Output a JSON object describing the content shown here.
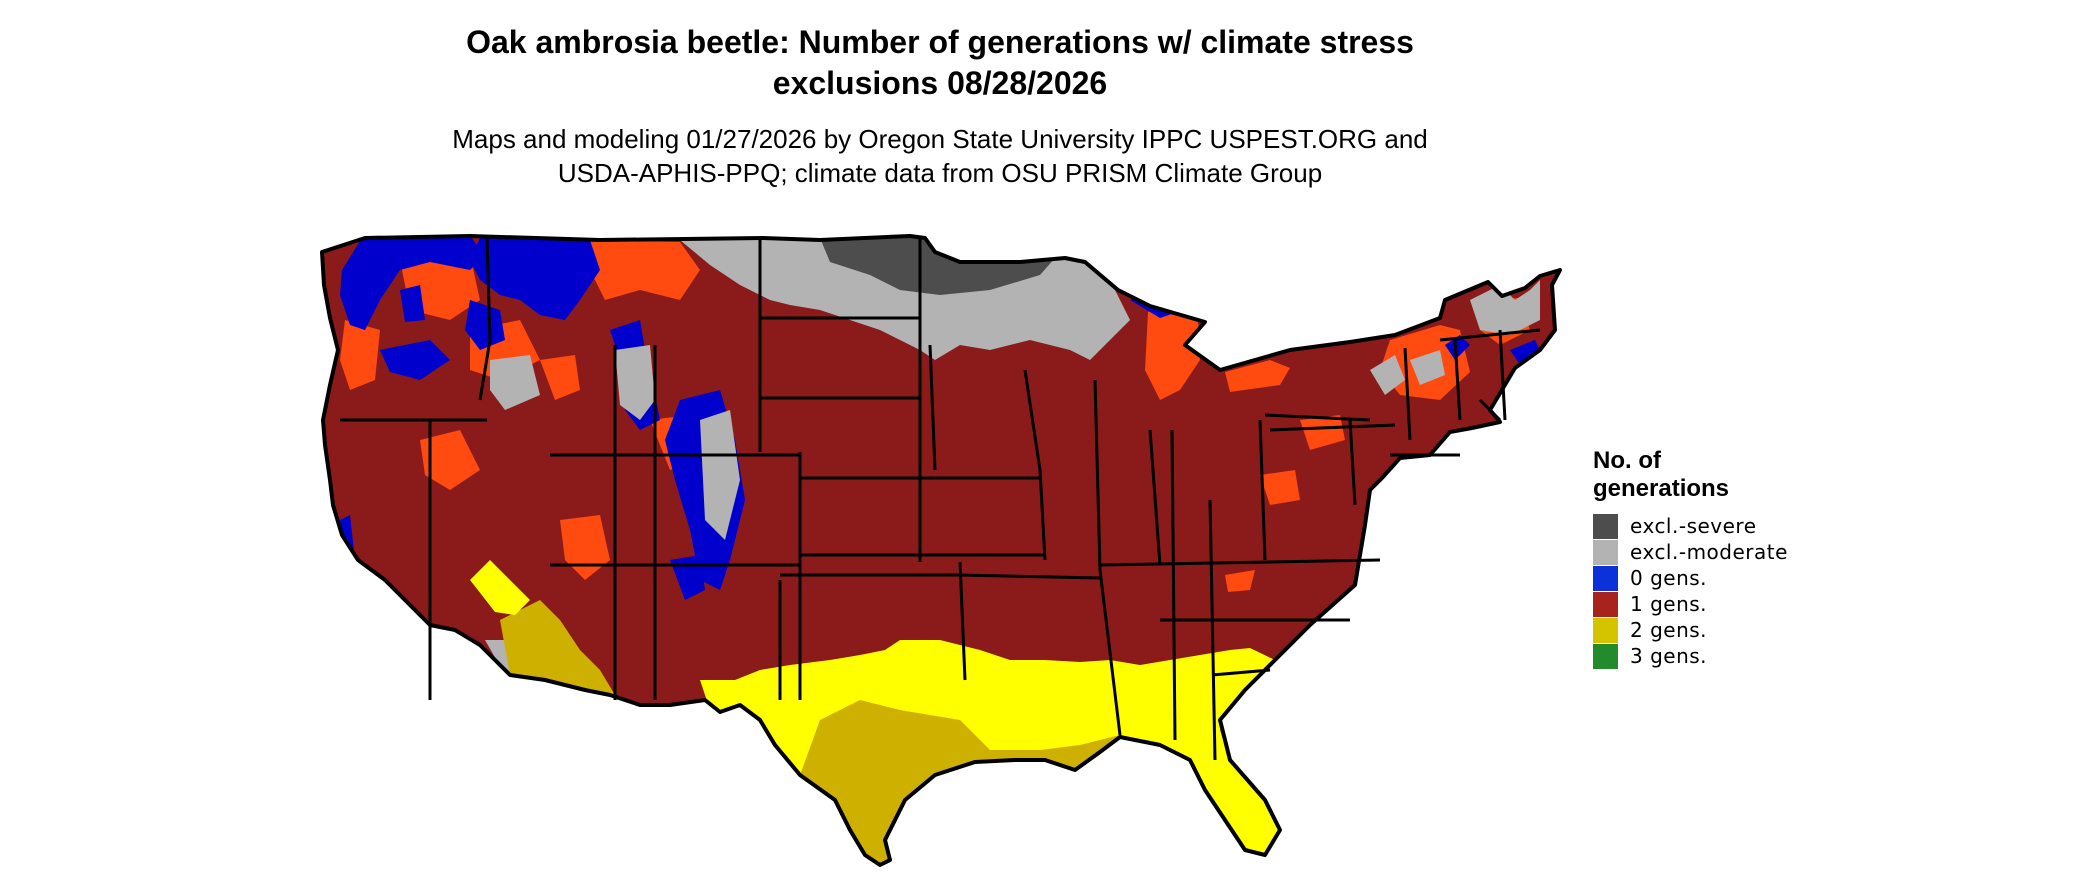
{
  "title": {
    "line1": "Oak ambrosia beetle: Number of generations w/ climate stress",
    "line2": "exclusions 08/28/2026"
  },
  "subtitle": {
    "line1": "Maps and modeling 01/27/2026 by Oregon State University IPPC USPEST.ORG and",
    "line2": "USDA-APHIS-PPQ; climate data from OSU PRISM Climate Group"
  },
  "legend": {
    "title_line1": "No. of",
    "title_line2": "generations",
    "items": [
      {
        "label": "excl.-severe",
        "color": "#4d4d4d"
      },
      {
        "label": "excl.-moderate",
        "color": "#b3b3b3"
      },
      {
        "label": "0 gens.",
        "color": "#0a32d8"
      },
      {
        "label": "1 gens.",
        "color": "#a8231c"
      },
      {
        "label": "2 gens.",
        "color": "#d4c400"
      },
      {
        "label": "3 gens.",
        "color": "#238b2b"
      }
    ]
  },
  "map": {
    "colors": {
      "one_gen": "#8b1a1a",
      "one_gen_bright": "#ff4a10",
      "zero_gen": "#0000cc",
      "excl_moderate": "#b3b3b3",
      "excl_severe": "#4d4d4d",
      "two_gen_bright": "#ffff00",
      "two_gen_dark": "#cdb000",
      "border": "#000000"
    }
  }
}
